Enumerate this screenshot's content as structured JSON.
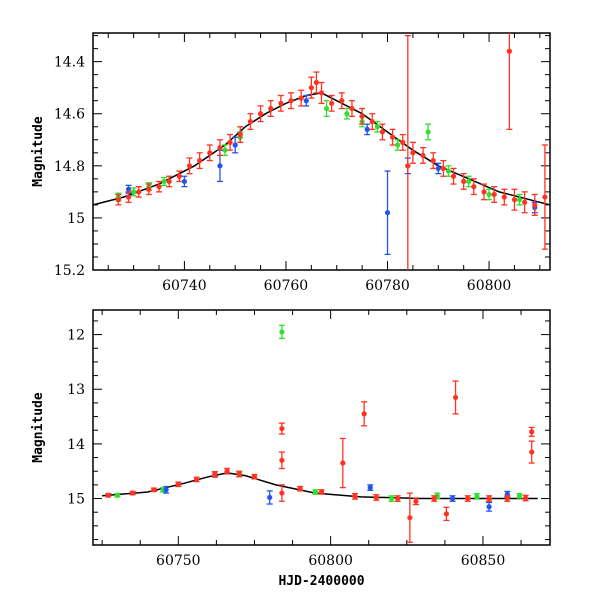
{
  "chart_data": [
    {
      "type": "scatter",
      "title": "",
      "xlabel": "",
      "ylabel": "Magnitude",
      "xlim": [
        60722,
        60812
      ],
      "ylim": [
        15.2,
        14.29
      ],
      "y_inverted": true,
      "grid": false,
      "xticks": [
        60740,
        60760,
        60780,
        60800
      ],
      "yticks": [
        14.4,
        14.6,
        14.8,
        15,
        15.2
      ],
      "model_curve": {
        "x": [
          60722,
          60728,
          60735,
          60742,
          60748,
          60752,
          60756,
          60760,
          60764,
          60767,
          60770,
          60775,
          60780,
          60785,
          60790,
          60796,
          60802,
          60808,
          60812
        ],
        "y": [
          14.95,
          14.92,
          14.87,
          14.8,
          14.72,
          14.65,
          14.6,
          14.56,
          14.53,
          14.52,
          14.55,
          14.6,
          14.67,
          14.74,
          14.8,
          14.85,
          14.9,
          14.93,
          14.95
        ]
      },
      "series": [
        {
          "color": "#33dd33",
          "x": [
            60727,
            60730,
            60733,
            60736,
            60748,
            60751,
            60768,
            60772,
            60775,
            60778,
            60782,
            60788,
            60792,
            60796,
            60800,
            60806
          ],
          "y": [
            14.92,
            14.9,
            14.88,
            14.86,
            14.74,
            14.69,
            14.58,
            14.6,
            14.63,
            14.65,
            14.72,
            14.67,
            14.82,
            14.86,
            14.91,
            14.93
          ],
          "err": [
            0.015,
            0.015,
            0.015,
            0.015,
            0.02,
            0.02,
            0.03,
            0.02,
            0.02,
            0.02,
            0.02,
            0.03,
            0.02,
            0.02,
            0.02,
            0.02
          ]
        },
        {
          "color": "#2255ee",
          "x": [
            60729,
            60740,
            60747,
            60750,
            60764,
            60776,
            60780,
            60784,
            60790,
            60809
          ],
          "y": [
            14.89,
            14.86,
            14.8,
            14.72,
            14.55,
            14.66,
            14.98,
            14.8,
            14.81,
            14.96
          ],
          "err": [
            0.015,
            0.02,
            0.06,
            0.03,
            0.02,
            0.02,
            0.16,
            0.03,
            0.02,
            0.02
          ]
        },
        {
          "color": "#ff3322",
          "x": [
            60727,
            60729,
            60731,
            60733,
            60735,
            60737,
            60739,
            60741,
            60743,
            60745,
            60747,
            60749,
            60751,
            60753,
            60755,
            60757,
            60759,
            60761,
            60763,
            60765,
            60766,
            60767,
            60769,
            60771,
            60773,
            60775,
            60777,
            60779,
            60781,
            60783,
            60784,
            60785,
            60787,
            60789,
            60791,
            60793,
            60795,
            60797,
            60799,
            60801,
            60803,
            60804,
            60805,
            60807,
            60809,
            60811
          ],
          "y": [
            14.93,
            14.92,
            14.9,
            14.89,
            14.88,
            14.86,
            14.84,
            14.8,
            14.78,
            14.75,
            14.73,
            14.71,
            14.68,
            14.63,
            14.6,
            14.58,
            14.56,
            14.55,
            14.54,
            14.5,
            14.48,
            14.52,
            14.56,
            14.55,
            14.58,
            14.61,
            14.63,
            14.67,
            14.69,
            14.71,
            14.8,
            14.75,
            14.76,
            14.78,
            14.81,
            14.84,
            14.86,
            14.88,
            14.9,
            14.91,
            14.92,
            14.36,
            14.93,
            14.94,
            14.95,
            14.92
          ],
          "err": [
            0.02,
            0.02,
            0.02,
            0.02,
            0.02,
            0.02,
            0.02,
            0.03,
            0.03,
            0.03,
            0.03,
            0.03,
            0.03,
            0.03,
            0.03,
            0.03,
            0.03,
            0.03,
            0.03,
            0.04,
            0.04,
            0.04,
            0.03,
            0.03,
            0.03,
            0.03,
            0.03,
            0.03,
            0.03,
            0.03,
            0.5,
            0.04,
            0.03,
            0.03,
            0.03,
            0.03,
            0.03,
            0.03,
            0.03,
            0.03,
            0.03,
            0.3,
            0.04,
            0.04,
            0.04,
            0.2
          ]
        }
      ]
    },
    {
      "type": "scatter",
      "title": "",
      "xlabel": "HJD-2400000",
      "ylabel": "Magnitude",
      "xlim": [
        60722,
        60872
      ],
      "ylim": [
        15.85,
        11.55
      ],
      "y_inverted": true,
      "grid": false,
      "xticks": [
        60750,
        60800,
        60850
      ],
      "yticks": [
        12,
        13,
        14,
        15
      ],
      "model_curve": {
        "x": [
          60725,
          60740,
          60752,
          60760,
          60766,
          60772,
          60782,
          60795,
          60810,
          60830,
          60850,
          60868
        ],
        "y": [
          14.95,
          14.88,
          14.72,
          14.6,
          14.53,
          14.58,
          14.75,
          14.9,
          14.97,
          15.0,
          15.0,
          15.0
        ]
      },
      "series": [
        {
          "color": "#33dd33",
          "x": [
            60730,
            60745,
            60770,
            60784,
            60795,
            60820,
            60835,
            60848,
            60862
          ],
          "y": [
            14.94,
            14.84,
            14.56,
            11.95,
            14.88,
            15.0,
            14.95,
            14.96,
            14.95
          ],
          "err": [
            0.03,
            0.04,
            0.04,
            0.12,
            0.04,
            0.05,
            0.05,
            0.05,
            0.04
          ]
        },
        {
          "color": "#2255ee",
          "x": [
            60746,
            60762,
            60780,
            60813,
            60840,
            60852,
            60858
          ],
          "y": [
            14.84,
            14.55,
            14.98,
            14.8,
            15.0,
            15.15,
            14.92
          ],
          "err": [
            0.06,
            0.04,
            0.12,
            0.05,
            0.05,
            0.08,
            0.05
          ]
        },
        {
          "color": "#ff3322",
          "x": [
            60727,
            60735,
            60742,
            60750,
            60756,
            60762,
            60766,
            60770,
            60775,
            60784,
            60784,
            60784,
            60790,
            60797,
            60804,
            60808,
            60811,
            60815,
            60822,
            60826,
            60828,
            60834,
            60838,
            60841,
            60845,
            60852,
            60858,
            60864,
            60866,
            60866
          ],
          "y": [
            14.94,
            14.9,
            14.84,
            14.74,
            14.65,
            14.56,
            14.5,
            14.55,
            14.6,
            14.3,
            13.72,
            14.9,
            14.82,
            14.88,
            14.35,
            14.96,
            13.45,
            14.98,
            15.0,
            15.35,
            15.05,
            15.0,
            15.28,
            13.15,
            15.0,
            15.0,
            15.0,
            14.99,
            14.15,
            13.78
          ],
          "err": [
            0.03,
            0.03,
            0.03,
            0.04,
            0.04,
            0.05,
            0.05,
            0.05,
            0.04,
            0.15,
            0.1,
            0.15,
            0.04,
            0.04,
            0.45,
            0.05,
            0.22,
            0.05,
            0.05,
            0.45,
            0.06,
            0.05,
            0.12,
            0.3,
            0.05,
            0.05,
            0.05,
            0.05,
            0.2,
            0.08
          ]
        }
      ]
    }
  ]
}
